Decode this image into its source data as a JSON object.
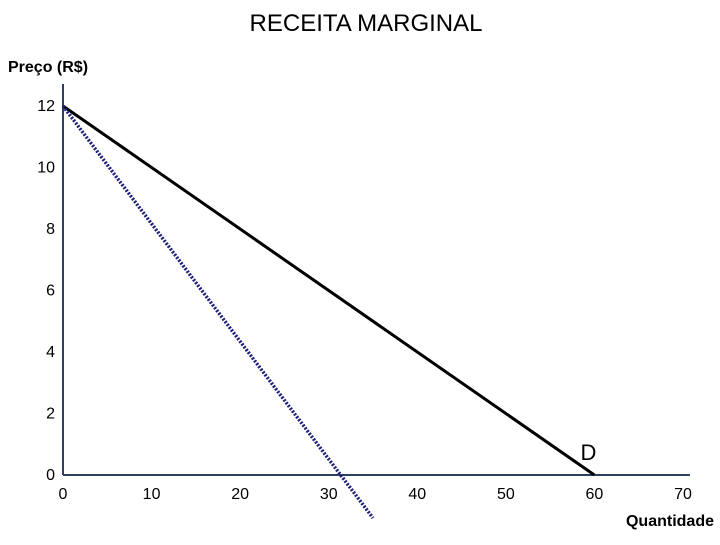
{
  "chart_data": {
    "type": "line",
    "title": "RECEITA MARGINAL",
    "ylabel": "Preço (R$)",
    "xlabel": "Quantidade",
    "xlim": [
      0,
      70
    ],
    "ylim": [
      0,
      12
    ],
    "x_ticks": [
      0,
      10,
      20,
      30,
      40,
      50,
      60,
      70
    ],
    "y_ticks": [
      0,
      2,
      4,
      6,
      8,
      10,
      12
    ],
    "grid": false,
    "annotations": [
      {
        "text": "D",
        "x": 60,
        "y": 0
      }
    ],
    "series": [
      {
        "style": "solid",
        "color": "#000000",
        "points": [
          {
            "x": 0,
            "y": 12
          },
          {
            "x": 60,
            "y": 0
          }
        ]
      },
      {
        "style": "dotted",
        "color": "#1f1f7a",
        "points": [
          {
            "x": 0,
            "y": 12
          },
          {
            "x": 35,
            "y": -1.4
          }
        ]
      }
    ]
  },
  "colors": {
    "axis": "#2f3f5f",
    "text": "#000000"
  }
}
